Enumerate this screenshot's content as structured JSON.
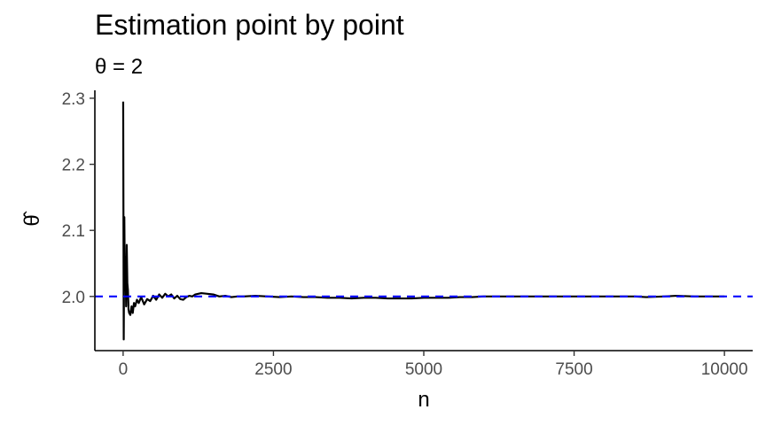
{
  "chart_data": {
    "type": "line",
    "title": "Estimation point by point",
    "subtitle": "θ = 2",
    "xlabel": "n",
    "ylabel": "θ̂",
    "xlim": [
      -470,
      10470
    ],
    "ylim": [
      1.918,
      2.312
    ],
    "x_ticks": [
      0,
      2500,
      5000,
      7500,
      10000
    ],
    "x_tick_labels": [
      "0",
      "2500",
      "5000",
      "7500",
      "10000"
    ],
    "y_ticks": [
      2.0,
      2.1,
      2.2,
      2.3
    ],
    "y_tick_labels": [
      "2.0",
      "2.1",
      "2.2",
      "2.3"
    ],
    "grid": false,
    "reference_line": {
      "y": 2.0,
      "style": "dashed",
      "color": "#0000ff"
    },
    "series": [
      {
        "color": "#000000",
        "x": [
          1,
          10,
          20,
          30,
          40,
          50,
          60,
          70,
          80,
          90,
          100,
          120,
          140,
          160,
          180,
          200,
          230,
          260,
          300,
          350,
          400,
          450,
          500,
          550,
          600,
          650,
          700,
          750,
          800,
          850,
          900,
          950,
          1000,
          1050,
          1100,
          1150,
          1200,
          1300,
          1400,
          1500,
          1600,
          1700,
          1800,
          1900,
          2000,
          2200,
          2400,
          2600,
          2800,
          3000,
          3200,
          3400,
          3600,
          3800,
          4000,
          4200,
          4400,
          4600,
          4800,
          5000,
          5200,
          5400,
          5600,
          5800,
          6000,
          6500,
          7000,
          7500,
          8000,
          8500,
          8700,
          9000,
          9200,
          9500,
          10000
        ],
        "y": [
          2.295,
          1.935,
          2.12,
          2.01,
          2.06,
          1.985,
          2.078,
          2.02,
          2.01,
          1.98,
          1.975,
          1.972,
          1.985,
          1.975,
          1.99,
          1.985,
          1.995,
          1.99,
          1.999,
          1.988,
          1.996,
          1.993,
          2.001,
          1.995,
          2.003,
          1.998,
          2.004,
          2.0,
          2.003,
          1.997,
          2.001,
          1.996,
          1.995,
          1.999,
          2.001,
          2.0,
          2.003,
          2.005,
          2.004,
          2.003,
          2.0,
          2.001,
          1.999,
          2.0,
          2.0,
          2.001,
          2.0,
          1.999,
          2.0,
          1.999,
          1.999,
          1.998,
          1.998,
          1.997,
          1.998,
          1.998,
          1.997,
          1.997,
          1.997,
          1.998,
          1.998,
          1.998,
          1.999,
          1.999,
          2.0,
          2.0,
          2.0,
          2.0,
          2.0,
          2.0,
          1.999,
          2.0,
          2.001,
          2.0,
          2.0
        ]
      }
    ]
  }
}
